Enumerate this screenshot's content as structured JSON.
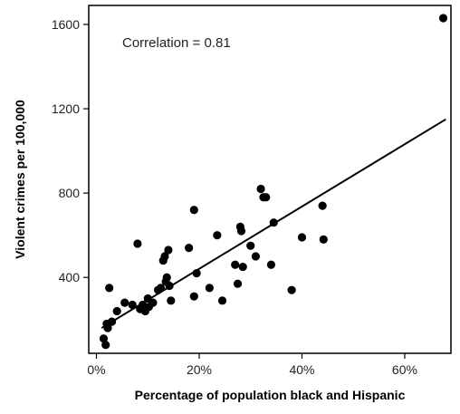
{
  "chart_data": {
    "type": "scatter",
    "xlabel": "Percentage of population black and Hispanic",
    "ylabel": "Violent crimes per 100,000",
    "annotation": "Correlation = 0.81",
    "xlim": [
      -0.015,
      0.69
    ],
    "ylim": [
      40,
      1690
    ],
    "x_ticks": [
      0,
      0.2,
      0.4,
      0.6
    ],
    "x_tick_labels": [
      "0%",
      "20%",
      "40%",
      "60%"
    ],
    "y_ticks": [
      400,
      800,
      1200,
      1600
    ],
    "y_tick_labels": [
      "400",
      "800",
      "1200",
      "1600"
    ],
    "grid": false,
    "point_color": "#000000",
    "fit_line": {
      "x": [
        0.01,
        0.68
      ],
      "y": [
        160,
        1150
      ]
    },
    "points": [
      {
        "x": 0.014,
        "y": 110
      },
      {
        "x": 0.018,
        "y": 80
      },
      {
        "x": 0.02,
        "y": 180
      },
      {
        "x": 0.022,
        "y": 160
      },
      {
        "x": 0.025,
        "y": 350
      },
      {
        "x": 0.03,
        "y": 190
      },
      {
        "x": 0.04,
        "y": 240
      },
      {
        "x": 0.055,
        "y": 280
      },
      {
        "x": 0.07,
        "y": 270
      },
      {
        "x": 0.08,
        "y": 560
      },
      {
        "x": 0.085,
        "y": 250
      },
      {
        "x": 0.09,
        "y": 270
      },
      {
        "x": 0.095,
        "y": 240
      },
      {
        "x": 0.1,
        "y": 300
      },
      {
        "x": 0.102,
        "y": 260
      },
      {
        "x": 0.11,
        "y": 280
      },
      {
        "x": 0.12,
        "y": 340
      },
      {
        "x": 0.125,
        "y": 350
      },
      {
        "x": 0.13,
        "y": 480
      },
      {
        "x": 0.133,
        "y": 500
      },
      {
        "x": 0.135,
        "y": 380
      },
      {
        "x": 0.137,
        "y": 400
      },
      {
        "x": 0.14,
        "y": 530
      },
      {
        "x": 0.142,
        "y": 360
      },
      {
        "x": 0.145,
        "y": 290
      },
      {
        "x": 0.18,
        "y": 540
      },
      {
        "x": 0.19,
        "y": 720
      },
      {
        "x": 0.19,
        "y": 310
      },
      {
        "x": 0.195,
        "y": 420
      },
      {
        "x": 0.22,
        "y": 350
      },
      {
        "x": 0.235,
        "y": 600
      },
      {
        "x": 0.245,
        "y": 290
      },
      {
        "x": 0.27,
        "y": 460
      },
      {
        "x": 0.275,
        "y": 370
      },
      {
        "x": 0.28,
        "y": 640
      },
      {
        "x": 0.282,
        "y": 620
      },
      {
        "x": 0.285,
        "y": 450
      },
      {
        "x": 0.3,
        "y": 550
      },
      {
        "x": 0.31,
        "y": 500
      },
      {
        "x": 0.32,
        "y": 820
      },
      {
        "x": 0.325,
        "y": 780
      },
      {
        "x": 0.33,
        "y": 780
      },
      {
        "x": 0.34,
        "y": 460
      },
      {
        "x": 0.345,
        "y": 660
      },
      {
        "x": 0.38,
        "y": 340
      },
      {
        "x": 0.4,
        "y": 590
      },
      {
        "x": 0.44,
        "y": 740
      },
      {
        "x": 0.442,
        "y": 580
      },
      {
        "x": 0.675,
        "y": 1630
      }
    ]
  }
}
